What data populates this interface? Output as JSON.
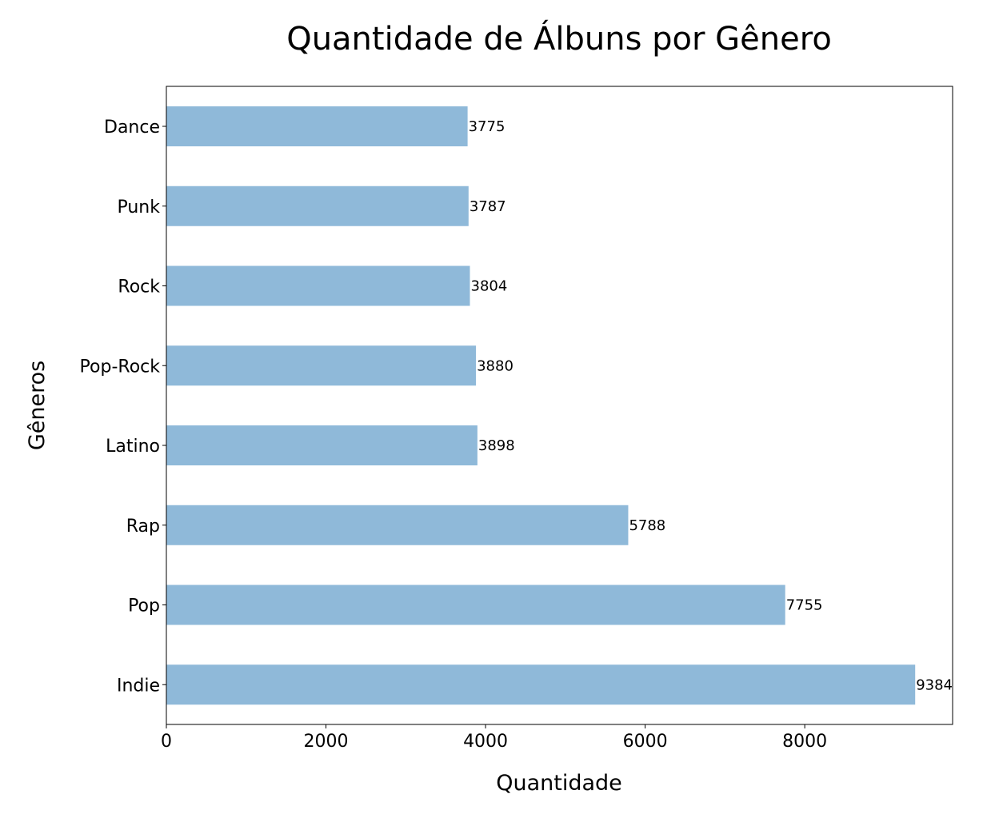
{
  "chart_data": {
    "type": "bar",
    "orientation": "horizontal",
    "title": "Quantidade de Álbuns por Gênero",
    "xlabel": "Quantidade",
    "ylabel": "Gêneros",
    "categories": [
      "Dance",
      "Punk",
      "Rock",
      "Pop-Rock",
      "Latino",
      "Rap",
      "Pop",
      "Indie"
    ],
    "values": [
      3775,
      3787,
      3804,
      3880,
      3898,
      5788,
      7755,
      9384
    ],
    "data_labels": [
      "3775",
      "3787",
      "3804",
      "3880",
      "3898",
      "5788",
      "7755",
      "9384"
    ],
    "xlim": [
      0,
      9853
    ],
    "xticks": [
      0,
      2000,
      4000,
      6000,
      8000
    ],
    "xtick_labels": [
      "0",
      "2000",
      "4000",
      "6000",
      "8000"
    ],
    "grid": false,
    "legend": "none",
    "bar_color": "#8fb9d9"
  }
}
